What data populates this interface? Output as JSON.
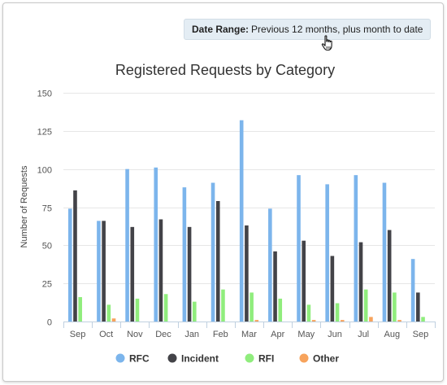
{
  "header": {
    "date_range_label": "Date Range:",
    "date_range_value": "Previous 12 months, plus month to date"
  },
  "icons": {
    "cursor": "hand-pointer-icon"
  },
  "chart_data": {
    "type": "bar",
    "title": "Registered Requests by Category",
    "xlabel": "",
    "ylabel": "Number of Requests",
    "ylim": [
      0,
      150
    ],
    "yticks": [
      0,
      25,
      50,
      75,
      100,
      125,
      150
    ],
    "grid": true,
    "legend_position": "bottom",
    "categories": [
      "Sep",
      "Oct",
      "Nov",
      "Dec",
      "Jan",
      "Feb",
      "Mar",
      "Apr",
      "May",
      "Jun",
      "Jul",
      "Aug",
      "Sep"
    ],
    "series": [
      {
        "name": "RFC",
        "color": "#7cb5ec",
        "values": [
          74,
          66,
          100,
          101,
          88,
          91,
          132,
          74,
          96,
          90,
          96,
          91,
          41
        ]
      },
      {
        "name": "Incident",
        "color": "#434348",
        "values": [
          86,
          66,
          62,
          67,
          62,
          79,
          63,
          46,
          53,
          43,
          52,
          60,
          19
        ]
      },
      {
        "name": "RFI",
        "color": "#90ed7d",
        "values": [
          16,
          11,
          15,
          18,
          13,
          21,
          19,
          15,
          11,
          12,
          21,
          19,
          3
        ]
      },
      {
        "name": "Other",
        "color": "#f7a35c",
        "values": [
          0,
          2,
          0,
          0,
          0,
          0,
          1,
          0,
          1,
          1,
          3,
          1,
          0
        ]
      }
    ]
  }
}
